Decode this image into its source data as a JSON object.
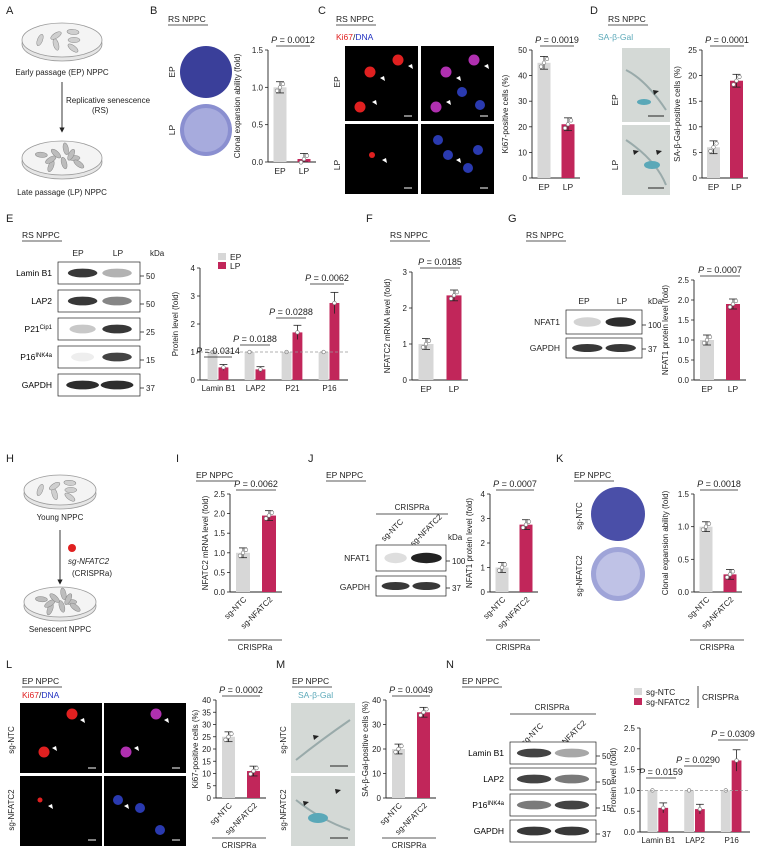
{
  "colors": {
    "ep": "#d7d7d7",
    "lp": "#c1265a",
    "axis": "#222",
    "ki67": "#e02020",
    "dna": "#2030c0",
    "sagal": "#5aa8b8",
    "plate": "#3a3f9a"
  },
  "panels": {
    "A": {
      "letter": "A",
      "early": "Early passage (EP) NPPC",
      "rs": "Replicative senescence",
      "rs2": "(RS)",
      "late": "Late passage (LP) NPPC"
    },
    "B": {
      "letter": "B",
      "title": "RS NPPC",
      "ep": "EP",
      "lp": "LP",
      "ylabel": "Clonal expansion ability (fold)",
      "p": "P = 0.0012"
    },
    "C": {
      "letter": "C",
      "title": "RS NPPC",
      "stain1": "Ki67",
      "slash": "/",
      "stain2": "DNA",
      "ep": "EP",
      "lp": "LP",
      "ylabel": "Ki67-positive cells (%)",
      "p": "P = 0.0019"
    },
    "D": {
      "letter": "D",
      "title": "RS NPPC",
      "stain": "SA-β-Gal",
      "ep": "EP",
      "lp": "LP",
      "ylabel": "SA-β-Gal-positive cells (%)",
      "p": "P = 0.0001"
    },
    "E": {
      "letter": "E",
      "title": "RS NPPC",
      "ep": "EP",
      "lp": "LP",
      "kda": "kDa",
      "ylabel": "Protein level (fold)",
      "legend_ep": "EP",
      "legend_lp": "LP",
      "bands": [
        "Lamin B1",
        "LAP2",
        "P21",
        "P16",
        "GAPDH"
      ],
      "sup": [
        "",
        "",
        "Cip1",
        "INK4a",
        ""
      ],
      "markers": [
        "50",
        "50",
        "25",
        "15",
        "37"
      ],
      "p": [
        "P = 0.0314",
        "P = 0.0188",
        "P = 0.0288",
        "P = 0.0062"
      ]
    },
    "F": {
      "letter": "F",
      "title": "RS NPPC",
      "ylabel": "NFATC2 mRNA level (fold)",
      "p": "P = 0.0185"
    },
    "G": {
      "letter": "G",
      "title": "RS NPPC",
      "ep": "EP",
      "lp": "LP",
      "kda": "kDa",
      "bands": [
        "NFAT1",
        "GAPDH"
      ],
      "markers": [
        "100",
        "37"
      ],
      "ylabel": "NFAT1 protein level (fold)",
      "p": "P = 0.0007"
    },
    "H": {
      "letter": "H",
      "young": "Young NPPC",
      "sg": "sg-NFATC2",
      "crispra": "(CRISPRa)",
      "senescent": "Senescent NPPC"
    },
    "I": {
      "letter": "I",
      "title": "EP NPPC",
      "ylabel": "NFATC2 mRNA level (fold)",
      "p": "P = 0.0062",
      "crispra": "CRISPRa"
    },
    "J": {
      "letter": "J",
      "title": "EP NPPC",
      "crispra": "CRISPRa",
      "kda": "kDa",
      "bands": [
        "NFAT1",
        "GAPDH"
      ],
      "markers": [
        "100",
        "37"
      ],
      "ylabel": "NFAT1 protein level (fold)",
      "p": "P = 0.0007"
    },
    "K": {
      "letter": "K",
      "title": "EP NPPC",
      "ylabel": "Clonal expansion ability (fold)",
      "p": "P = 0.0018",
      "crispra": "CRISPRa"
    },
    "L": {
      "letter": "L",
      "title": "EP NPPC",
      "stain1": "Ki67",
      "slash": "/",
      "stain2": "DNA",
      "ylabel": "Ki67-positive cells (%)",
      "p": "P = 0.0002",
      "crispra": "CRISPRa"
    },
    "M": {
      "letter": "M",
      "title": "EP NPPC",
      "stain": "SA-β-Gal",
      "ylabel": "SA-β-Gal-positive cells (%)",
      "p": "P = 0.0049",
      "crispra": "CRISPRa"
    },
    "N": {
      "letter": "N",
      "title": "EP NPPC",
      "crispra": "CRISPRa",
      "bands": [
        "Lamin B1",
        "LAP2",
        "P16",
        "GAPDH"
      ],
      "sup": [
        "",
        "",
        "INK4a",
        ""
      ],
      "markers": [
        "50",
        "50",
        "15",
        "37"
      ],
      "ylabel": "Protein level (fold)",
      "legend_ntc": "sg-NTC",
      "legend_nfatc2": "sg-NFATC2",
      "legend_crispra": "CRISPRa",
      "p": [
        "P = 0.0159",
        "P = 0.0290",
        "P = 0.0309"
      ]
    },
    "sg_ntc": "sg-NTC",
    "sg_nfatc2": "sg-NFATC2"
  },
  "chart_data": [
    {
      "panel": "B",
      "type": "bar",
      "categories": [
        "EP",
        "LP"
      ],
      "values": [
        1.0,
        0.04
      ],
      "ylim": [
        0,
        1.5
      ],
      "yticks": [
        0,
        0.5,
        1.0,
        1.5
      ],
      "ylabel": "Clonal expansion ability (fold)"
    },
    {
      "panel": "C",
      "type": "bar",
      "categories": [
        "EP",
        "LP"
      ],
      "values": [
        45,
        21
      ],
      "ylim": [
        0,
        50
      ],
      "yticks": [
        0,
        10,
        20,
        30,
        40,
        50
      ],
      "ylabel": "Ki67-positive cells (%)"
    },
    {
      "panel": "D",
      "type": "bar",
      "categories": [
        "EP",
        "LP"
      ],
      "values": [
        6,
        19
      ],
      "ylim": [
        0,
        25
      ],
      "yticks": [
        0,
        5,
        10,
        15,
        20,
        25
      ],
      "ylabel": "SA-β-Gal-positive cells (%)"
    },
    {
      "panel": "E",
      "type": "bar",
      "categories": [
        "Lamin B1",
        "LAP2",
        "P21",
        "P16"
      ],
      "ylim": [
        0,
        4
      ],
      "yticks": [
        0,
        1,
        2,
        3,
        4
      ],
      "ylabel": "Protein level (fold)",
      "series": [
        {
          "name": "EP",
          "values": [
            1.0,
            1.0,
            1.0,
            1.0
          ]
        },
        {
          "name": "LP",
          "values": [
            0.45,
            0.38,
            1.7,
            2.75
          ]
        }
      ]
    },
    {
      "panel": "F",
      "type": "bar",
      "categories": [
        "EP",
        "LP"
      ],
      "values": [
        1.0,
        2.35
      ],
      "ylim": [
        0,
        3
      ],
      "yticks": [
        0,
        1,
        2,
        3
      ],
      "ylabel": "NFATC2 mRNA level (fold)"
    },
    {
      "panel": "G",
      "type": "bar",
      "categories": [
        "EP",
        "LP"
      ],
      "values": [
        1.0,
        1.9
      ],
      "ylim": [
        0,
        2.5
      ],
      "yticks": [
        0,
        0.5,
        1.0,
        1.5,
        2.0,
        2.5
      ],
      "ylabel": "NFAT1 protein level (fold)"
    },
    {
      "panel": "I",
      "type": "bar",
      "categories": [
        "sg-NTC",
        "sg-NFATC2"
      ],
      "values": [
        1.0,
        1.95
      ],
      "ylim": [
        0,
        2.5
      ],
      "yticks": [
        0,
        0.5,
        1.0,
        1.5,
        2.0,
        2.5
      ],
      "ylabel": "NFATC2 mRNA level (fold)"
    },
    {
      "panel": "J",
      "type": "bar",
      "categories": [
        "sg-NTC",
        "sg-NFATC2"
      ],
      "values": [
        1.0,
        2.75
      ],
      "ylim": [
        0,
        4
      ],
      "yticks": [
        0,
        1,
        2,
        3,
        4
      ],
      "ylabel": "NFAT1 protein level (fold)"
    },
    {
      "panel": "K",
      "type": "bar",
      "categories": [
        "sg-NTC",
        "sg-NFATC2"
      ],
      "values": [
        1.0,
        0.27
      ],
      "ylim": [
        0,
        1.5
      ],
      "yticks": [
        0,
        0.5,
        1.0,
        1.5
      ],
      "ylabel": "Clonal expansion ability (fold)"
    },
    {
      "panel": "L",
      "type": "bar",
      "categories": [
        "sg-NTC",
        "sg-NFATC2"
      ],
      "values": [
        25,
        11
      ],
      "ylim": [
        0,
        40
      ],
      "yticks": [
        0,
        5,
        10,
        15,
        20,
        25,
        30,
        35,
        40
      ],
      "ylabel": "Ki67-positive cells (%)"
    },
    {
      "panel": "M",
      "type": "bar",
      "categories": [
        "sg-NTC",
        "sg-NFATC2"
      ],
      "values": [
        20,
        35
      ],
      "ylim": [
        0,
        40
      ],
      "yticks": [
        0,
        10,
        20,
        30,
        40
      ],
      "ylabel": "SA-β-Gal-positive cells (%)"
    },
    {
      "panel": "N",
      "type": "bar",
      "categories": [
        "Lamin B1",
        "LAP2",
        "P16"
      ],
      "ylim": [
        0,
        2.5
      ],
      "yticks": [
        0,
        0.5,
        1.0,
        1.5,
        2.0,
        2.5
      ],
      "ylabel": "Protein level (fold)",
      "series": [
        {
          "name": "sg-NTC",
          "values": [
            1.0,
            1.0,
            1.0
          ]
        },
        {
          "name": "sg-NFATC2",
          "values": [
            0.58,
            0.55,
            1.72
          ]
        }
      ]
    }
  ]
}
